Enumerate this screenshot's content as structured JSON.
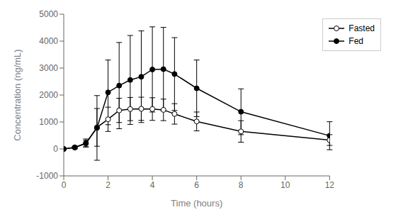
{
  "chart_data": {
    "type": "line",
    "xlabel": "Time (hours)",
    "ylabel": "Concentration (ng/mL)",
    "xlim": [
      0,
      12
    ],
    "xticks": [
      0,
      2,
      4,
      6,
      8,
      10,
      12
    ],
    "ylim": [
      -1000,
      5000
    ],
    "yticks": [
      -1000,
      0,
      1000,
      2000,
      3000,
      4000,
      5000
    ],
    "legend": "upper right",
    "grid": false,
    "series": [
      {
        "name": "Fasted",
        "color": "#000000",
        "marker": "circle_open",
        "x": [
          0,
          0.5,
          1.0,
          1.5,
          2.0,
          2.5,
          3.0,
          3.5,
          4.0,
          4.5,
          5.0,
          6.0,
          8.0,
          12.0
        ],
        "values": [
          0,
          50,
          200,
          800,
          1100,
          1430,
          1480,
          1490,
          1480,
          1450,
          1300,
          1020,
          650,
          330
        ],
        "errors": [
          0,
          30,
          120,
          700,
          450,
          450,
          430,
          430,
          420,
          400,
          380,
          350,
          400,
          200
        ]
      },
      {
        "name": "Fed",
        "color": "#000000",
        "marker": "circle",
        "x": [
          0,
          0.5,
          1.0,
          1.5,
          2.0,
          2.5,
          3.0,
          3.5,
          4.0,
          4.5,
          5.0,
          6.0,
          8.0,
          12.0
        ],
        "values": [
          0,
          60,
          220,
          780,
          2100,
          2350,
          2560,
          2680,
          2950,
          2960,
          2780,
          2250,
          1380,
          490
        ],
        "errors": [
          0,
          40,
          150,
          1200,
          1200,
          1600,
          1650,
          1700,
          1580,
          1550,
          1350,
          1050,
          850,
          520
        ]
      }
    ]
  }
}
